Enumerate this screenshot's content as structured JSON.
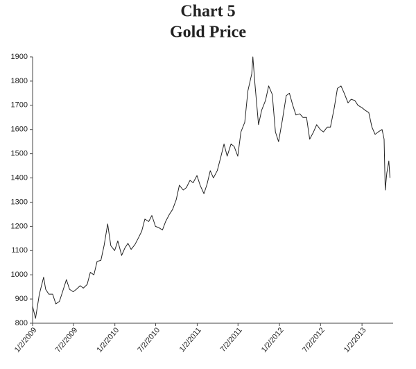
{
  "chart_data": {
    "type": "line",
    "title": "Chart 5",
    "subtitle": "Gold Price",
    "color": "#222222",
    "x": [
      "2009-01-02",
      "2009-01-15",
      "2009-02-01",
      "2009-02-20",
      "2009-03-01",
      "2009-03-15",
      "2009-04-01",
      "2009-04-15",
      "2009-05-01",
      "2009-05-15",
      "2009-06-01",
      "2009-06-15",
      "2009-07-01",
      "2009-07-15",
      "2009-08-01",
      "2009-08-15",
      "2009-09-01",
      "2009-09-15",
      "2009-10-01",
      "2009-10-15",
      "2009-11-01",
      "2009-11-15",
      "2009-12-01",
      "2009-12-15",
      "2010-01-01",
      "2010-01-15",
      "2010-02-01",
      "2010-02-15",
      "2010-03-01",
      "2010-03-15",
      "2010-04-01",
      "2010-04-15",
      "2010-05-01",
      "2010-05-15",
      "2010-06-01",
      "2010-06-15",
      "2010-07-01",
      "2010-07-15",
      "2010-08-01",
      "2010-08-15",
      "2010-09-01",
      "2010-09-15",
      "2010-10-01",
      "2010-10-15",
      "2010-11-01",
      "2010-11-15",
      "2010-12-01",
      "2010-12-15",
      "2011-01-01",
      "2011-01-15",
      "2011-02-01",
      "2011-02-15",
      "2011-03-01",
      "2011-03-15",
      "2011-04-01",
      "2011-04-15",
      "2011-05-01",
      "2011-05-15",
      "2011-06-01",
      "2011-06-15",
      "2011-07-01",
      "2011-07-15",
      "2011-08-01",
      "2011-08-15",
      "2011-09-01",
      "2011-09-06",
      "2011-09-15",
      "2011-10-01",
      "2011-10-15",
      "2011-11-01",
      "2011-11-15",
      "2011-12-01",
      "2011-12-15",
      "2011-12-29",
      "2012-01-15",
      "2012-02-01",
      "2012-02-15",
      "2012-03-01",
      "2012-03-15",
      "2012-04-01",
      "2012-04-15",
      "2012-05-01",
      "2012-05-15",
      "2012-06-01",
      "2012-06-15",
      "2012-07-01",
      "2012-07-15",
      "2012-08-01",
      "2012-08-15",
      "2012-09-01",
      "2012-09-15",
      "2012-10-01",
      "2012-10-15",
      "2012-11-01",
      "2012-11-15",
      "2012-12-01",
      "2012-12-15",
      "2013-01-02",
      "2013-01-15",
      "2013-02-01",
      "2013-02-15",
      "2013-03-01",
      "2013-03-15",
      "2013-04-01",
      "2013-04-10",
      "2013-04-15",
      "2013-04-22",
      "2013-05-01",
      "2013-05-06"
    ],
    "values": [
      870,
      820,
      920,
      990,
      940,
      920,
      920,
      880,
      890,
      930,
      980,
      940,
      930,
      940,
      955,
      945,
      960,
      1010,
      1000,
      1055,
      1060,
      1120,
      1210,
      1120,
      1100,
      1140,
      1080,
      1110,
      1130,
      1105,
      1125,
      1150,
      1180,
      1230,
      1220,
      1245,
      1200,
      1195,
      1185,
      1220,
      1250,
      1270,
      1310,
      1370,
      1350,
      1360,
      1390,
      1380,
      1410,
      1370,
      1335,
      1375,
      1430,
      1400,
      1430,
      1480,
      1540,
      1490,
      1540,
      1530,
      1490,
      1590,
      1630,
      1760,
      1830,
      1900,
      1790,
      1620,
      1680,
      1720,
      1780,
      1745,
      1590,
      1550,
      1640,
      1740,
      1750,
      1700,
      1660,
      1665,
      1650,
      1650,
      1560,
      1590,
      1620,
      1600,
      1590,
      1610,
      1610,
      1690,
      1770,
      1780,
      1750,
      1710,
      1725,
      1720,
      1700,
      1690,
      1680,
      1670,
      1610,
      1580,
      1590,
      1600,
      1560,
      1350,
      1420,
      1470,
      1400
    ],
    "xlim": [
      "2009-01-02",
      "2013-05-20"
    ],
    "xticks": [
      {
        "value": "2009-01-02",
        "label": "1/2/2009"
      },
      {
        "value": "2009-07-02",
        "label": "7/2/2009"
      },
      {
        "value": "2010-01-02",
        "label": "1/2/2010"
      },
      {
        "value": "2010-07-02",
        "label": "7/2/2010"
      },
      {
        "value": "2011-01-02",
        "label": "1/2/2011"
      },
      {
        "value": "2011-07-02",
        "label": "7/2/2011"
      },
      {
        "value": "2012-01-02",
        "label": "1/2/2012"
      },
      {
        "value": "2012-07-02",
        "label": "7/2/2012"
      },
      {
        "value": "2013-01-02",
        "label": "1/2/2013"
      }
    ],
    "ylim": [
      800,
      1900
    ],
    "yticks": [
      800,
      900,
      1000,
      1100,
      1200,
      1300,
      1400,
      1500,
      1600,
      1700,
      1800,
      1900
    ]
  }
}
